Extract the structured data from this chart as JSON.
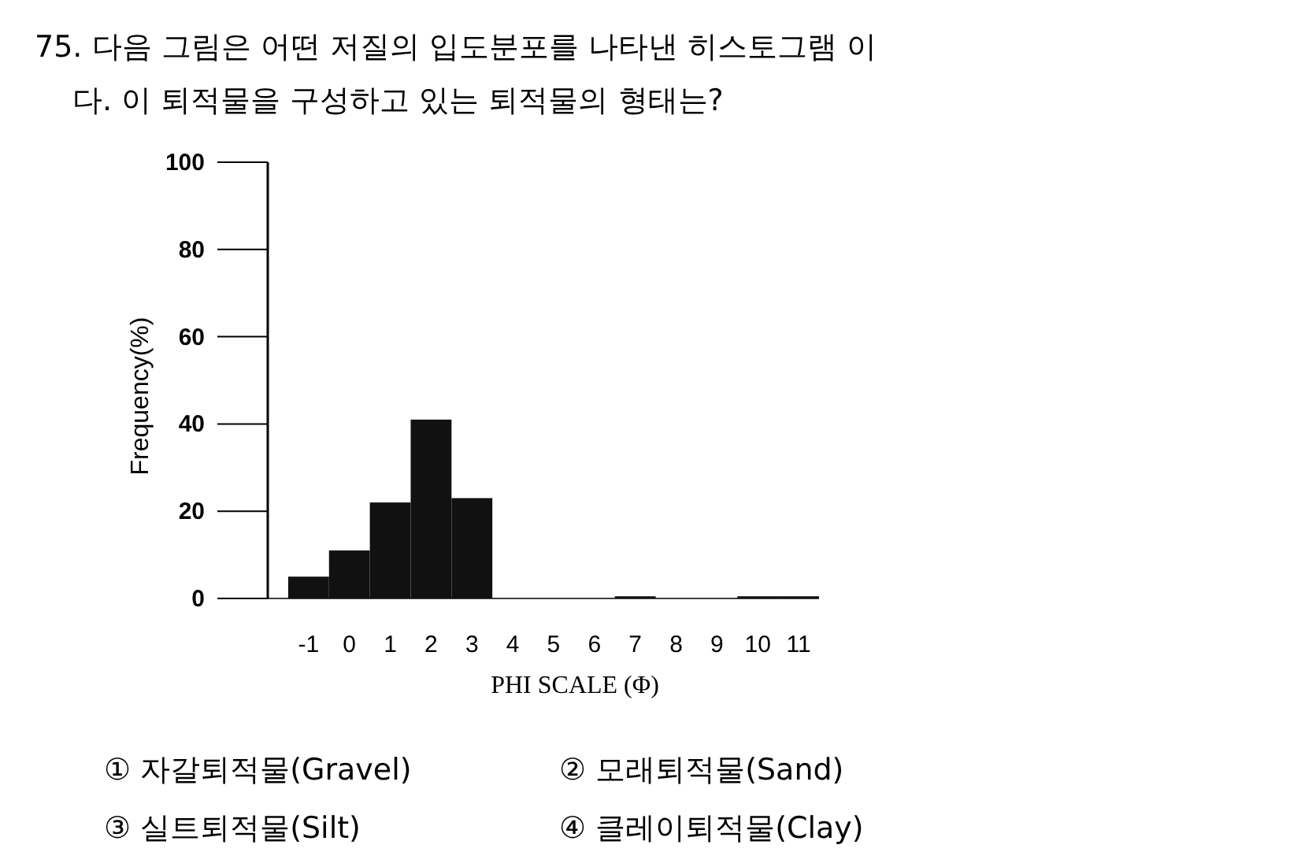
{
  "chart_data": {
    "type": "histogram",
    "title": "75. 다음 그림은 어떤 저질의 입도분포를 나타낸 히스토그램 이",
    "subtitle": "다. 이 퇴적물을 구성하고 있는 퇴적물의 형태는?",
    "xlabel": "PHI SCALE (Φ)",
    "ylabel": "Frequency(%)",
    "bins": [
      -1.5,
      -0.5,
      0.5,
      1.5,
      2.5,
      3.5,
      4.5,
      5.5,
      6.5,
      7.5,
      8.5,
      9.5,
      10.5,
      11.5
    ],
    "values": [
      5,
      11,
      22,
      41,
      23,
      0,
      0,
      0,
      0.5,
      0,
      0,
      0.5,
      0.5
    ],
    "color": "#111111",
    "xlim": [
      -2,
      11.5
    ],
    "ylim": [
      0,
      100
    ],
    "xticks": [
      -1,
      0,
      1,
      2,
      3,
      4,
      5,
      6,
      7,
      8,
      9,
      10,
      11
    ],
    "yticks": [
      0,
      20,
      40,
      60,
      80,
      100
    ],
    "grid": false,
    "annotations": [
      "① 자갈퇴적물(Gravel)",
      "② 모래퇴적물(Sand)",
      "③ 실트퇴적물(Silt)",
      "④ 클레이퇴적물(Clay)"
    ]
  }
}
